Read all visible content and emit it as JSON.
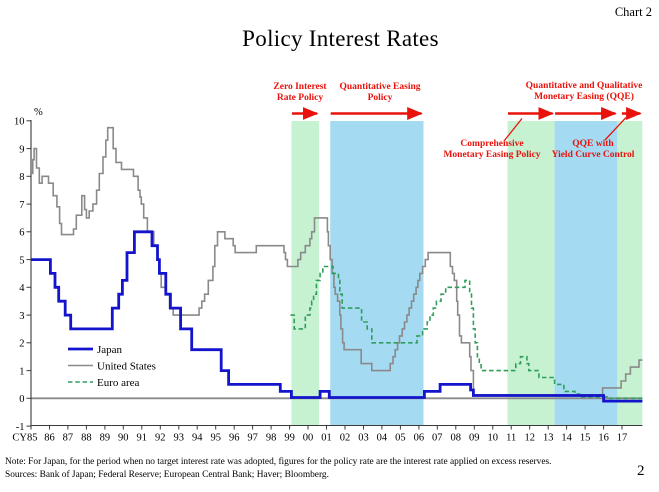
{
  "header": {
    "chart_label": "Chart 2",
    "title": "Policy Interest Rates"
  },
  "axis": {
    "unit_label": "%"
  },
  "annotations": {
    "zirp": {
      "text": "Zero Interest\nRate Policy"
    },
    "qe": {
      "text": "Quantitative Easing\nPolicy"
    },
    "qqe": {
      "text": "Quantitative and Qualitative\nMonetary Easing (QQE)"
    },
    "cme": {
      "text": "Comprehensive\nMonetary Easing Policy"
    },
    "ycc": {
      "text": "QQE with\nYield Curve Control"
    }
  },
  "footer": {
    "note": "Note: For Japan, for the period when no target interest rate was adopted, figures for the policy rate are the interest rate applied on excess reserves.",
    "sources": "Sources: Bank of Japan; Federal Reserve; European Central Bank; Haver; Bloomberg.",
    "page_number": "2"
  },
  "colors": {
    "annotation_red": "#e8130c",
    "shade_green": "#c6f2d2",
    "shade_blue": "#a5dbf2",
    "zero_line": "#8a8a8a",
    "axis": "#3a3a3a"
  },
  "chart_data": {
    "type": "line",
    "title": "Policy Interest Rates",
    "ylabel": "%",
    "ylim": [
      -1,
      10
    ],
    "xlim": [
      1985,
      2018.1
    ],
    "grid": false,
    "legend_position": "inside lower left",
    "y_ticks": [
      10,
      9,
      8,
      7,
      6,
      5,
      4,
      3,
      2,
      1,
      0,
      -1
    ],
    "x_ticks": [
      {
        "year": 1985,
        "label": "CY85"
      },
      {
        "year": 1986,
        "label": "86"
      },
      {
        "year": 1987,
        "label": "87"
      },
      {
        "year": 1988,
        "label": "88"
      },
      {
        "year": 1989,
        "label": "89"
      },
      {
        "year": 1990,
        "label": "90"
      },
      {
        "year": 1991,
        "label": "91"
      },
      {
        "year": 1992,
        "label": "92"
      },
      {
        "year": 1993,
        "label": "93"
      },
      {
        "year": 1994,
        "label": "94"
      },
      {
        "year": 1995,
        "label": "95"
      },
      {
        "year": 1996,
        "label": "96"
      },
      {
        "year": 1997,
        "label": "97"
      },
      {
        "year": 1998,
        "label": "98"
      },
      {
        "year": 1999,
        "label": "99"
      },
      {
        "year": 2000,
        "label": "00"
      },
      {
        "year": 2001,
        "label": "01"
      },
      {
        "year": 2002,
        "label": "02"
      },
      {
        "year": 2003,
        "label": "03"
      },
      {
        "year": 2004,
        "label": "04"
      },
      {
        "year": 2005,
        "label": "05"
      },
      {
        "year": 2006,
        "label": "06"
      },
      {
        "year": 2007,
        "label": "07"
      },
      {
        "year": 2008,
        "label": "08"
      },
      {
        "year": 2009,
        "label": "09"
      },
      {
        "year": 2010,
        "label": "10"
      },
      {
        "year": 2011,
        "label": "11"
      },
      {
        "year": 2012,
        "label": "12"
      },
      {
        "year": 2013,
        "label": "13"
      },
      {
        "year": 2014,
        "label": "14"
      },
      {
        "year": 2015,
        "label": "15"
      },
      {
        "year": 2016,
        "label": "16"
      },
      {
        "year": 2017,
        "label": "17"
      }
    ],
    "zero_line": true,
    "policy_periods": [
      {
        "name": "Zero Interest Rate Policy",
        "from": 1999.1,
        "to": 2000.6,
        "color": "#c6f2d2"
      },
      {
        "name": "Quantitative Easing Policy",
        "from": 2001.2,
        "to": 2006.25,
        "color": "#a5dbf2"
      },
      {
        "name": "Comprehensive Monetary Easing Policy",
        "from": 2010.8,
        "to": 2013.35,
        "color": "#c6f2d2"
      },
      {
        "name": "Quantitative and Qualitative Monetary Easing (QQE)",
        "from": 2013.35,
        "to": 2016.75,
        "color": "#a5dbf2"
      },
      {
        "name": "QQE with Yield Curve Control",
        "from": 2016.75,
        "to": 2018.1,
        "color": "#c6f2d2"
      }
    ],
    "series": [
      {
        "name": "Japan",
        "color": "#1414cc",
        "width": 2.8,
        "dash": "none",
        "step": true,
        "points": [
          [
            1985.0,
            5.0
          ],
          [
            1986.05,
            4.5
          ],
          [
            1986.3,
            4.0
          ],
          [
            1986.5,
            3.5
          ],
          [
            1986.85,
            3.0
          ],
          [
            1987.15,
            2.5
          ],
          [
            1989.4,
            3.25
          ],
          [
            1989.75,
            3.75
          ],
          [
            1989.95,
            4.25
          ],
          [
            1990.2,
            5.25
          ],
          [
            1990.6,
            6.0
          ],
          [
            1991.55,
            5.5
          ],
          [
            1991.85,
            5.0
          ],
          [
            1991.95,
            4.5
          ],
          [
            1992.3,
            3.75
          ],
          [
            1992.55,
            3.25
          ],
          [
            1993.1,
            2.5
          ],
          [
            1993.7,
            1.75
          ],
          [
            1995.3,
            1.0
          ],
          [
            1995.7,
            0.5
          ],
          [
            1998.5,
            0.25
          ],
          [
            1999.1,
            0.03
          ],
          [
            2000.65,
            0.25
          ],
          [
            2001.15,
            0.03
          ],
          [
            2006.3,
            0.25
          ],
          [
            2007.15,
            0.5
          ],
          [
            2008.8,
            0.3
          ],
          [
            2008.95,
            0.1
          ],
          [
            2016.0,
            -0.1
          ],
          [
            2018.1,
            -0.1
          ]
        ]
      },
      {
        "name": "United States",
        "color": "#8a8a8a",
        "width": 1.6,
        "dash": "none",
        "step": true,
        "points": [
          [
            1985.0,
            8.1
          ],
          [
            1985.1,
            8.6
          ],
          [
            1985.17,
            9.0
          ],
          [
            1985.3,
            8.3
          ],
          [
            1985.45,
            7.75
          ],
          [
            1985.6,
            8.0
          ],
          [
            1985.95,
            7.75
          ],
          [
            1986.2,
            7.3
          ],
          [
            1986.4,
            6.9
          ],
          [
            1986.55,
            6.3
          ],
          [
            1986.65,
            5.9
          ],
          [
            1987.3,
            6.1
          ],
          [
            1987.45,
            6.6
          ],
          [
            1987.75,
            7.3
          ],
          [
            1987.9,
            6.8
          ],
          [
            1988.0,
            6.5
          ],
          [
            1988.15,
            6.75
          ],
          [
            1988.35,
            7.0
          ],
          [
            1988.55,
            7.5
          ],
          [
            1988.7,
            8.1
          ],
          [
            1988.9,
            8.7
          ],
          [
            1989.05,
            9.3
          ],
          [
            1989.15,
            9.75
          ],
          [
            1989.45,
            9.0
          ],
          [
            1989.6,
            8.5
          ],
          [
            1989.9,
            8.25
          ],
          [
            1990.55,
            8.0
          ],
          [
            1990.8,
            7.5
          ],
          [
            1990.9,
            7.25
          ],
          [
            1990.97,
            7.0
          ],
          [
            1991.1,
            6.5
          ],
          [
            1991.3,
            6.0
          ],
          [
            1991.65,
            5.5
          ],
          [
            1991.85,
            5.0
          ],
          [
            1991.95,
            4.5
          ],
          [
            1992.05,
            4.0
          ],
          [
            1992.3,
            3.75
          ],
          [
            1992.5,
            3.25
          ],
          [
            1992.7,
            3.0
          ],
          [
            1994.1,
            3.25
          ],
          [
            1994.25,
            3.5
          ],
          [
            1994.4,
            3.75
          ],
          [
            1994.6,
            4.25
          ],
          [
            1994.85,
            4.75
          ],
          [
            1994.95,
            5.5
          ],
          [
            1995.1,
            6.0
          ],
          [
            1995.5,
            5.75
          ],
          [
            1995.95,
            5.5
          ],
          [
            1996.05,
            5.25
          ],
          [
            1997.2,
            5.5
          ],
          [
            1998.7,
            5.25
          ],
          [
            1998.78,
            5.0
          ],
          [
            1998.88,
            4.75
          ],
          [
            1999.45,
            5.0
          ],
          [
            1999.6,
            5.25
          ],
          [
            1999.85,
            5.5
          ],
          [
            2000.1,
            5.75
          ],
          [
            2000.2,
            6.0
          ],
          [
            2000.35,
            6.5
          ],
          [
            2001.05,
            6.0
          ],
          [
            2001.1,
            5.5
          ],
          [
            2001.2,
            5.0
          ],
          [
            2001.3,
            4.5
          ],
          [
            2001.4,
            4.0
          ],
          [
            2001.47,
            3.75
          ],
          [
            2001.6,
            3.5
          ],
          [
            2001.72,
            3.0
          ],
          [
            2001.78,
            2.5
          ],
          [
            2001.87,
            2.0
          ],
          [
            2001.95,
            1.75
          ],
          [
            2002.88,
            1.25
          ],
          [
            2003.45,
            1.0
          ],
          [
            2004.45,
            1.25
          ],
          [
            2004.6,
            1.5
          ],
          [
            2004.72,
            1.75
          ],
          [
            2004.85,
            2.0
          ],
          [
            2004.95,
            2.25
          ],
          [
            2005.1,
            2.5
          ],
          [
            2005.22,
            2.75
          ],
          [
            2005.35,
            3.0
          ],
          [
            2005.47,
            3.25
          ],
          [
            2005.6,
            3.5
          ],
          [
            2005.72,
            3.75
          ],
          [
            2005.85,
            4.0
          ],
          [
            2005.95,
            4.25
          ],
          [
            2006.05,
            4.5
          ],
          [
            2006.2,
            4.75
          ],
          [
            2006.35,
            5.0
          ],
          [
            2006.5,
            5.25
          ],
          [
            2007.7,
            4.75
          ],
          [
            2007.82,
            4.5
          ],
          [
            2007.92,
            4.25
          ],
          [
            2008.05,
            3.5
          ],
          [
            2008.1,
            3.0
          ],
          [
            2008.2,
            2.25
          ],
          [
            2008.3,
            2.0
          ],
          [
            2008.75,
            1.5
          ],
          [
            2008.82,
            1.0
          ],
          [
            2008.95,
            0.125
          ],
          [
            2015.95,
            0.375
          ],
          [
            2016.95,
            0.625
          ],
          [
            2017.2,
            0.875
          ],
          [
            2017.45,
            1.125
          ],
          [
            2017.92,
            1.375
          ],
          [
            2018.1,
            1.375
          ]
        ]
      },
      {
        "name": "Euro area",
        "color": "#2f9e5a",
        "width": 1.6,
        "dash": "4.5,2.8",
        "step": true,
        "points": [
          [
            1999.05,
            3.0
          ],
          [
            1999.25,
            2.5
          ],
          [
            1999.85,
            3.0
          ],
          [
            2000.1,
            3.25
          ],
          [
            2000.2,
            3.5
          ],
          [
            2000.3,
            3.75
          ],
          [
            2000.45,
            4.25
          ],
          [
            2000.65,
            4.5
          ],
          [
            2000.8,
            4.75
          ],
          [
            2001.35,
            4.5
          ],
          [
            2001.65,
            4.25
          ],
          [
            2001.72,
            3.75
          ],
          [
            2001.85,
            3.25
          ],
          [
            2002.9,
            2.75
          ],
          [
            2003.2,
            2.5
          ],
          [
            2003.45,
            2.0
          ],
          [
            2005.9,
            2.25
          ],
          [
            2006.2,
            2.5
          ],
          [
            2006.45,
            2.75
          ],
          [
            2006.6,
            3.0
          ],
          [
            2006.78,
            3.25
          ],
          [
            2006.95,
            3.5
          ],
          [
            2007.2,
            3.75
          ],
          [
            2007.45,
            4.0
          ],
          [
            2008.5,
            4.25
          ],
          [
            2008.75,
            3.75
          ],
          [
            2008.85,
            3.25
          ],
          [
            2008.95,
            2.5
          ],
          [
            2009.05,
            2.0
          ],
          [
            2009.17,
            1.5
          ],
          [
            2009.27,
            1.25
          ],
          [
            2009.37,
            1.0
          ],
          [
            2011.25,
            1.25
          ],
          [
            2011.5,
            1.5
          ],
          [
            2011.85,
            1.25
          ],
          [
            2011.95,
            1.0
          ],
          [
            2012.5,
            0.75
          ],
          [
            2013.35,
            0.5
          ],
          [
            2013.85,
            0.25
          ],
          [
            2014.45,
            0.15
          ],
          [
            2014.7,
            0.05
          ],
          [
            2016.2,
            0.0
          ],
          [
            2018.1,
            0.0
          ]
        ]
      }
    ],
    "legend": [
      {
        "label": "Japan",
        "series": "Japan"
      },
      {
        "label": "United States",
        "series": "United States"
      },
      {
        "label": "Euro area",
        "series": "Euro area"
      }
    ]
  }
}
